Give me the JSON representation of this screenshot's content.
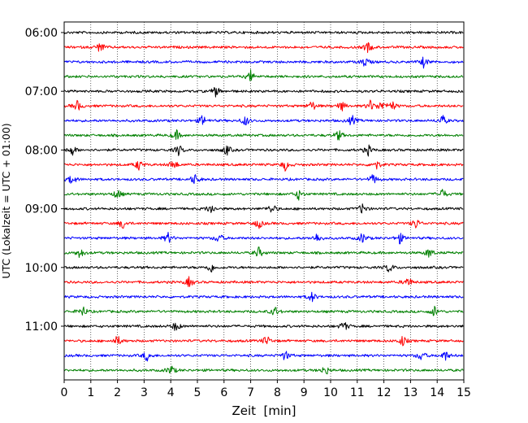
{
  "chart_data": {
    "type": "line",
    "title": "",
    "xlabel": "Zeit  [min]",
    "ylabel": "UTC (Lokalzeit = UTC + 01:00)",
    "xlim": [
      0,
      15
    ],
    "x_ticks": [
      "0",
      "1",
      "2",
      "3",
      "4",
      "5",
      "6",
      "7",
      "8",
      "9",
      "10",
      "11",
      "12",
      "13",
      "14",
      "15"
    ],
    "y_tick_labels": [
      "06:00",
      "07:00",
      "08:00",
      "09:00",
      "10:00",
      "11:00"
    ],
    "grid": "vertical dotted lines at every minute",
    "line_interval_min": 15,
    "trace_color_cycle": [
      "#000000",
      "#ff0000",
      "#0000ff",
      "#008000"
    ],
    "traces": [
      {
        "start": "06:00",
        "color": "#000000",
        "events": []
      },
      {
        "start": "06:15",
        "color": "#ff0000",
        "events": [
          1.35,
          11.4
        ]
      },
      {
        "start": "06:30",
        "color": "#0000ff",
        "events": [
          11.3,
          13.5
        ]
      },
      {
        "start": "06:45",
        "color": "#008000",
        "events": [
          7.0
        ]
      },
      {
        "start": "07:00",
        "color": "#000000",
        "events": [
          5.7
        ]
      },
      {
        "start": "07:15",
        "color": "#ff0000",
        "events": [
          0.5,
          9.3,
          10.4,
          11.5,
          11.9,
          12.3
        ]
      },
      {
        "start": "07:30",
        "color": "#0000ff",
        "events": [
          5.2,
          6.8,
          10.8,
          14.2
        ]
      },
      {
        "start": "07:45",
        "color": "#008000",
        "events": [
          4.2,
          10.3
        ]
      },
      {
        "start": "08:00",
        "color": "#000000",
        "events": [
          0.3,
          4.3,
          6.1,
          11.4
        ]
      },
      {
        "start": "08:15",
        "color": "#ff0000",
        "events": [
          2.8,
          4.1,
          8.3,
          11.7
        ]
      },
      {
        "start": "08:30",
        "color": "#0000ff",
        "events": [
          0.3,
          4.9,
          11.6
        ]
      },
      {
        "start": "08:45",
        "color": "#008000",
        "events": [
          2.0,
          8.8,
          14.2
        ]
      },
      {
        "start": "09:00",
        "color": "#000000",
        "events": [
          5.5,
          7.8,
          11.2
        ]
      },
      {
        "start": "09:15",
        "color": "#ff0000",
        "events": [
          2.2,
          7.3,
          13.2
        ]
      },
      {
        "start": "09:30",
        "color": "#0000ff",
        "events": [
          3.9,
          5.8,
          9.5,
          11.2,
          12.6
        ]
      },
      {
        "start": "09:45",
        "color": "#008000",
        "events": [
          0.6,
          7.3,
          13.7
        ]
      },
      {
        "start": "10:00",
        "color": "#000000",
        "events": [
          5.5,
          12.2
        ]
      },
      {
        "start": "10:15",
        "color": "#ff0000",
        "events": [
          4.7,
          12.9
        ]
      },
      {
        "start": "10:30",
        "color": "#0000ff",
        "events": [
          9.3
        ]
      },
      {
        "start": "10:45",
        "color": "#008000",
        "events": [
          0.7,
          7.9,
          13.9
        ]
      },
      {
        "start": "11:00",
        "color": "#000000",
        "events": [
          4.2,
          10.5
        ]
      },
      {
        "start": "11:15",
        "color": "#ff0000",
        "events": [
          2.0,
          7.6,
          12.7
        ]
      },
      {
        "start": "11:30",
        "color": "#0000ff",
        "events": [
          3.1,
          8.3,
          13.4,
          14.3
        ]
      },
      {
        "start": "11:45",
        "color": "#008000",
        "events": [
          4.0,
          9.8
        ]
      }
    ]
  }
}
